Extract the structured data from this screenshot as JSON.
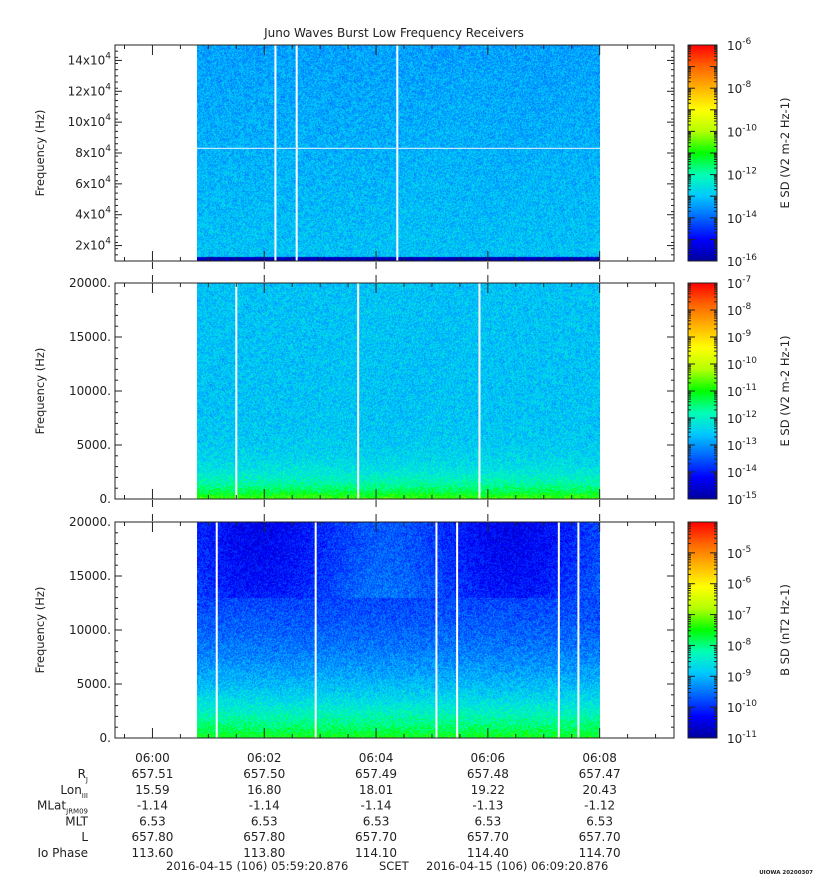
{
  "title": "Juno Waves Burst Low Frequency Receivers",
  "colors": {
    "axis": "#222222",
    "gap": "#ffffff",
    "colormap": [
      "#00009c",
      "#0000ff",
      "#0066ff",
      "#00c8ff",
      "#00ffb4",
      "#00ff00",
      "#b4ff00",
      "#ffff00",
      "#ffb400",
      "#ff6400",
      "#ff0000"
    ]
  },
  "chart_data": [
    {
      "type": "heatmap",
      "ylabel": "Frequency (Hz)",
      "ylim": [
        10000,
        150000
      ],
      "yticks": [
        {
          "value": 20000,
          "mant": "2x10",
          "exp": "4"
        },
        {
          "value": 40000,
          "mant": "4x10",
          "exp": "4"
        },
        {
          "value": 60000,
          "mant": "6x10",
          "exp": "4"
        },
        {
          "value": 80000,
          "mant": "8x10",
          "exp": "4"
        },
        {
          "value": 100000,
          "mant": "10x10",
          "exp": "4"
        },
        {
          "value": 120000,
          "mant": "12x10",
          "exp": "4"
        },
        {
          "value": 140000,
          "mant": "14x10",
          "exp": "4"
        }
      ],
      "colorbar": {
        "label": "E SD (V2 m-2 Hz-1)",
        "log_range": [
          -16,
          -6
        ],
        "ticks": [
          "10^-6",
          "10^-8",
          "10^-10",
          "10^-12",
          "10^-14",
          "10^-16"
        ]
      },
      "data_start_min": 0.8,
      "data_end_min": 8.0,
      "gap_lines_min": [
        2.2,
        2.58,
        4.38
      ],
      "horizontal_line_freq": 83000,
      "background_level": 0.3,
      "low_band_level": 0.02
    },
    {
      "type": "heatmap",
      "ylabel": "Frequency (Hz)",
      "ylim": [
        0,
        20000
      ],
      "yticks": [
        {
          "value": 0,
          "label": "0."
        },
        {
          "value": 5000,
          "label": "5000."
        },
        {
          "value": 10000,
          "label": "10000."
        },
        {
          "value": 15000,
          "label": "15000."
        },
        {
          "value": 20000,
          "label": "20000."
        }
      ],
      "colorbar": {
        "label": "E SD (V2 m-2 Hz-1)",
        "log_range": [
          -15,
          -7
        ],
        "ticks": [
          "10^-7",
          "10^-8",
          "10^-9",
          "10^-10",
          "10^-11",
          "10^-12",
          "10^-13",
          "10^-14",
          "10^-15"
        ]
      },
      "data_start_min": 0.8,
      "data_end_min": 8.0,
      "gap_lines_min": [
        1.5,
        3.68,
        5.85
      ],
      "background_level": 0.3,
      "low_band_level": 0.55
    },
    {
      "type": "heatmap",
      "ylabel": "Frequency (Hz)",
      "ylim": [
        0,
        20000
      ],
      "yticks": [
        {
          "value": 0,
          "label": "0."
        },
        {
          "value": 5000,
          "label": "5000."
        },
        {
          "value": 10000,
          "label": "10000."
        },
        {
          "value": 15000,
          "label": "15000."
        },
        {
          "value": 20000,
          "label": "20000."
        }
      ],
      "colorbar": {
        "label": "B SD (nT2 Hz-1)",
        "log_range": [
          -11,
          -4
        ],
        "ticks": [
          "10^-5",
          "10^-6",
          "10^-7",
          "10^-8",
          "10^-9",
          "10^-10",
          "10^-11"
        ]
      },
      "data_start_min": 0.8,
      "data_end_min": 8.0,
      "gap_lines_min": [
        1.15,
        2.92,
        5.08,
        5.45,
        7.27,
        7.62
      ],
      "background_level": 0.12,
      "low_band_level": 0.5
    }
  ],
  "x_axis": {
    "range_min": [
      -0.67,
      9.33
    ],
    "ticks": [
      {
        "min": 0,
        "label": "06:00"
      },
      {
        "min": 2,
        "label": "06:02"
      },
      {
        "min": 4,
        "label": "06:04"
      },
      {
        "min": 6,
        "label": "06:06"
      },
      {
        "min": 8,
        "label": "06:08"
      }
    ]
  },
  "ephemeris": {
    "rows": [
      {
        "label": "R",
        "sub": "J",
        "values": [
          "657.51",
          "657.50",
          "657.49",
          "657.48",
          "657.47"
        ]
      },
      {
        "label": "Lon",
        "sub": "III",
        "values": [
          "15.59",
          "16.80",
          "18.01",
          "19.22",
          "20.43"
        ]
      },
      {
        "label": "MLat",
        "sub": "JRM09",
        "values": [
          "-1.14",
          "-1.14",
          "-1.14",
          "-1.13",
          "-1.12"
        ]
      },
      {
        "label": "MLT",
        "sub": "",
        "values": [
          "6.53",
          "6.53",
          "6.53",
          "6.53",
          "6.53"
        ]
      },
      {
        "label": "L",
        "sub": "",
        "values": [
          "657.80",
          "657.80",
          "657.70",
          "657.70",
          "657.70"
        ]
      },
      {
        "label": "Io Phase",
        "sub": "",
        "values": [
          "113.60",
          "113.80",
          "114.10",
          "114.40",
          "114.70"
        ]
      }
    ]
  },
  "footer": {
    "start": "2016-04-15 (106) 05:59:20.876",
    "scet": "SCET",
    "end": "2016-04-15 (106) 06:09:20.876",
    "stamp": "UIOWA 20200307"
  }
}
